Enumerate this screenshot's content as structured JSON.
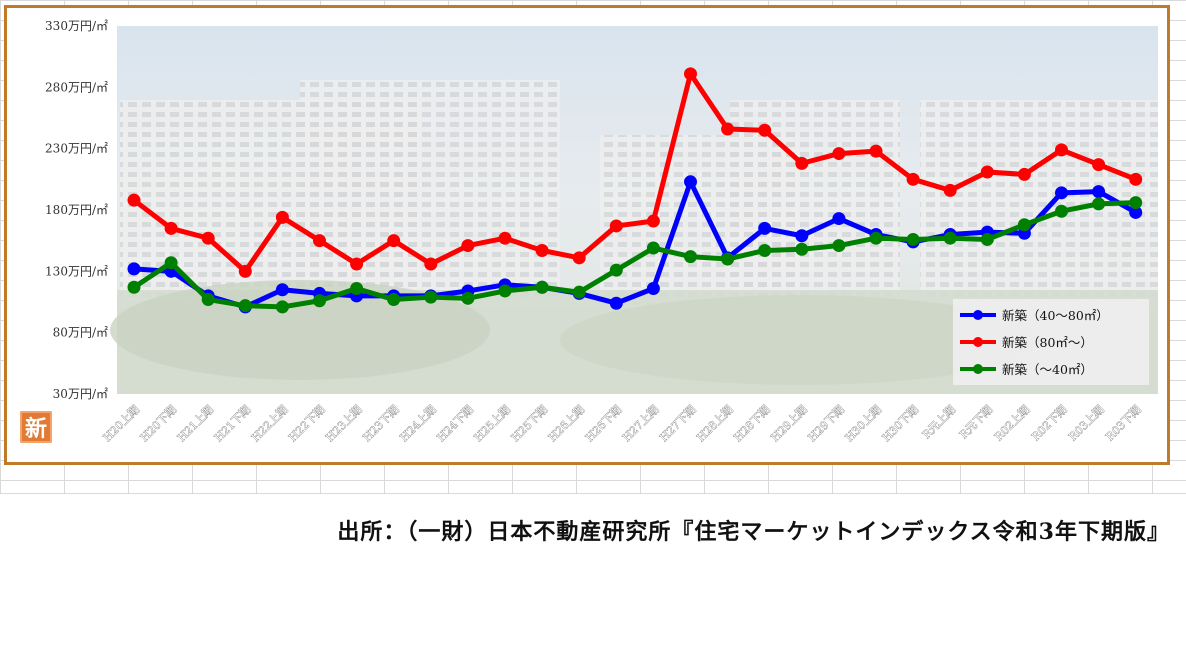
{
  "chart_data": {
    "type": "line",
    "y_tick_labels": [
      "330万円/㎡",
      "280万円/㎡",
      "230万円/㎡",
      "180万円/㎡",
      "130万円/㎡",
      "80万円/㎡",
      "30万円/㎡"
    ],
    "ylim": [
      30,
      330
    ],
    "yticks": [
      330,
      280,
      230,
      180,
      130,
      80,
      30
    ],
    "categories": [
      "H20上期",
      "H20下期",
      "H21上期",
      "H21下期",
      "H22上期",
      "H22下期",
      "H23上期",
      "H23下期",
      "H24上期",
      "H24下期",
      "H25上期",
      "H25下期",
      "H26上期",
      "H26下期",
      "H27上期",
      "H27下期",
      "H28上期",
      "H28下期",
      "H29上期",
      "H29下期",
      "H30上期",
      "H30下期",
      "R元上期",
      "R元下期",
      "R02上期",
      "R02下期",
      "R03上期",
      "R03下期"
    ],
    "series": [
      {
        "name": "新築（40～80㎡）",
        "color": "#0000ff",
        "values": [
          132,
          130,
          110,
          101,
          115,
          112,
          110,
          110,
          110,
          114,
          119,
          117,
          112,
          104,
          116,
          203,
          141,
          165,
          159,
          173,
          160,
          154,
          160,
          162,
          161,
          194,
          195,
          178
        ]
      },
      {
        "name": "新築（80㎡～）",
        "color": "#ff0000",
        "values": [
          188,
          165,
          157,
          130,
          174,
          155,
          136,
          155,
          136,
          151,
          157,
          147,
          141,
          167,
          171,
          291,
          246,
          245,
          218,
          226,
          228,
          205,
          196,
          211,
          209,
          229,
          217,
          205
        ]
      },
      {
        "name": "新築（～40㎡）",
        "color": "#008000",
        "values": [
          117,
          137,
          107,
          102,
          101,
          106,
          116,
          107,
          109,
          108,
          114,
          117,
          113,
          131,
          149,
          142,
          140,
          147,
          148,
          151,
          157,
          156,
          157,
          156,
          168,
          179,
          185,
          186
        ]
      }
    ],
    "legend_position": "bottom-right",
    "grid": false
  },
  "badge": {
    "label": "新"
  },
  "source": {
    "text": "出所：（一財）日本不動産研究所『住宅マーケットインデックス令和3年下期版』"
  }
}
